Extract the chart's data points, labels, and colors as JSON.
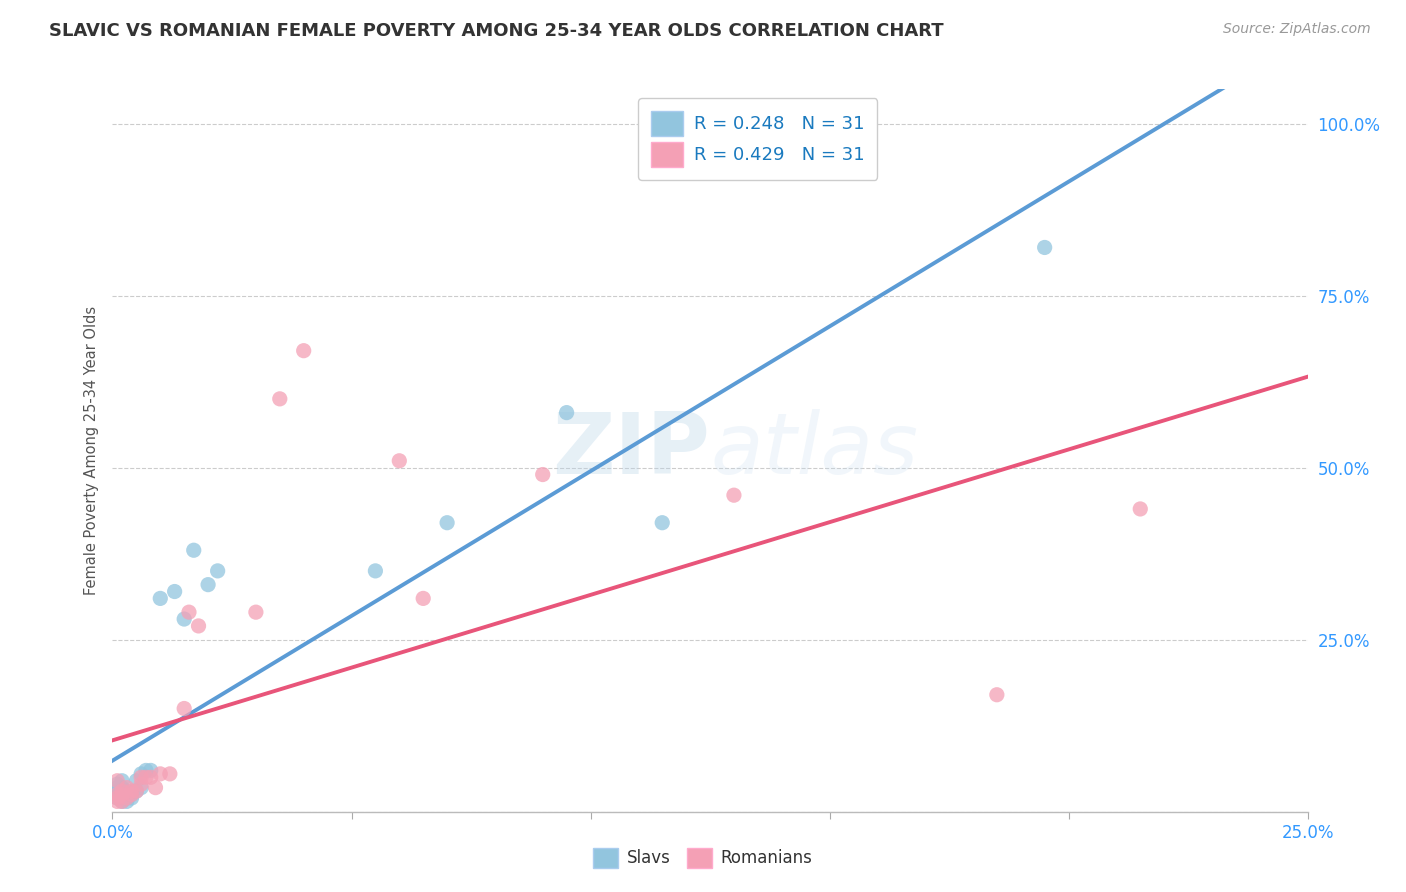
{
  "title": "SLAVIC VS ROMANIAN FEMALE POVERTY AMONG 25-34 YEAR OLDS CORRELATION CHART",
  "source": "Source: ZipAtlas.com",
  "ylabel": "Female Poverty Among 25-34 Year Olds",
  "xlim": [
    0.0,
    0.25
  ],
  "ylim": [
    0.0,
    1.05
  ],
  "slavs_R": "0.248",
  "slavs_N": "31",
  "romanians_R": "0.429",
  "romanians_N": "31",
  "slavs_color": "#92c5de",
  "romanians_color": "#f4a0b5",
  "slavs_line_color": "#5b9bd5",
  "romanians_line_color": "#e8557a",
  "background_color": "#ffffff",
  "slavs_x": [
    0.001,
    0.001,
    0.001,
    0.001,
    0.001,
    0.002,
    0.002,
    0.002,
    0.002,
    0.003,
    0.003,
    0.003,
    0.004,
    0.004,
    0.005,
    0.005,
    0.006,
    0.006,
    0.007,
    0.008,
    0.01,
    0.013,
    0.015,
    0.017,
    0.02,
    0.022,
    0.055,
    0.07,
    0.095,
    0.115,
    0.195
  ],
  "slavs_y": [
    0.02,
    0.025,
    0.03,
    0.035,
    0.04,
    0.015,
    0.02,
    0.035,
    0.045,
    0.015,
    0.02,
    0.03,
    0.02,
    0.025,
    0.045,
    0.03,
    0.055,
    0.035,
    0.06,
    0.06,
    0.31,
    0.32,
    0.28,
    0.38,
    0.33,
    0.35,
    0.35,
    0.42,
    0.58,
    0.42,
    0.82
  ],
  "romanians_x": [
    0.001,
    0.001,
    0.001,
    0.001,
    0.002,
    0.002,
    0.002,
    0.003,
    0.003,
    0.004,
    0.004,
    0.005,
    0.006,
    0.006,
    0.007,
    0.008,
    0.009,
    0.01,
    0.012,
    0.015,
    0.016,
    0.018,
    0.03,
    0.035,
    0.04,
    0.06,
    0.065,
    0.09,
    0.13,
    0.185,
    0.215
  ],
  "romanians_y": [
    0.015,
    0.02,
    0.025,
    0.045,
    0.015,
    0.025,
    0.03,
    0.02,
    0.035,
    0.025,
    0.03,
    0.03,
    0.04,
    0.05,
    0.05,
    0.05,
    0.035,
    0.055,
    0.055,
    0.15,
    0.29,
    0.27,
    0.29,
    0.6,
    0.67,
    0.51,
    0.31,
    0.49,
    0.46,
    0.17,
    0.44
  ]
}
